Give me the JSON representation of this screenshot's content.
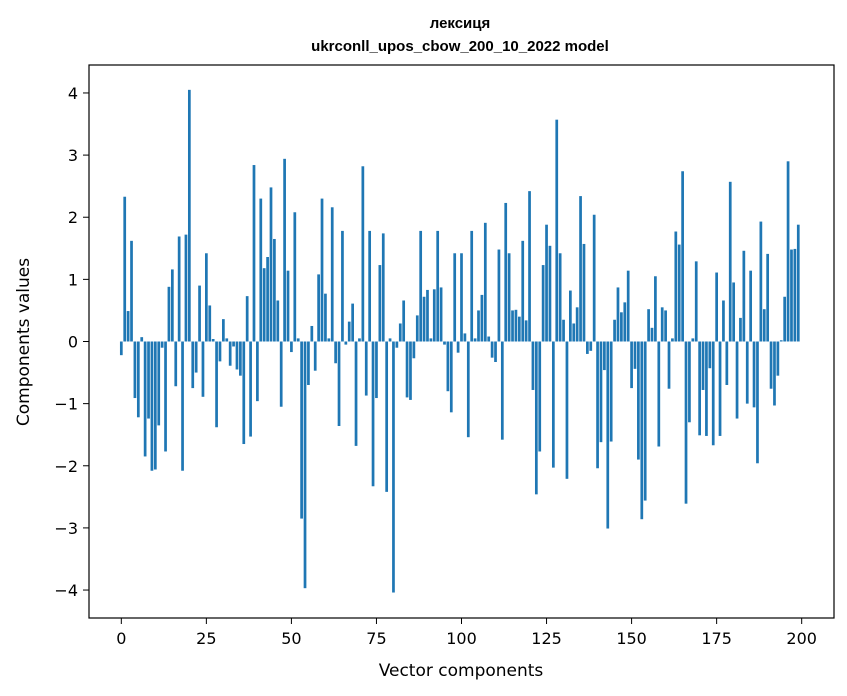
{
  "chart_data": {
    "type": "bar",
    "title": "лексиця",
    "subtitle": "ukrconll_upos_cbow_200_10_2022 model",
    "xlabel": "Vector components",
    "ylabel": "Components values",
    "xlim": [
      -9.5,
      209.5
    ],
    "ylim": [
      -4.45,
      4.45
    ],
    "xticks": [
      0,
      25,
      50,
      75,
      100,
      125,
      150,
      175,
      200
    ],
    "yticks": [
      -4,
      -3,
      -2,
      -1,
      0,
      1,
      2,
      3,
      4
    ],
    "grid": false,
    "color": "#1f77b4",
    "values": [
      -0.22,
      2.33,
      0.49,
      1.62,
      -0.91,
      -1.22,
      0.07,
      -1.85,
      -1.24,
      -2.08,
      -2.06,
      -1.35,
      -0.1,
      -1.77,
      0.88,
      1.16,
      -0.72,
      1.69,
      -2.08,
      1.72,
      4.05,
      -0.75,
      -0.5,
      0.9,
      -0.89,
      1.42,
      0.58,
      0.04,
      -1.38,
      -0.32,
      0.36,
      0.05,
      -0.39,
      -0.08,
      -0.45,
      -0.55,
      -1.65,
      0.73,
      -1.53,
      2.84,
      -0.96,
      2.3,
      1.18,
      1.36,
      2.48,
      1.65,
      0.66,
      -1.05,
      2.94,
      1.14,
      -0.17,
      2.08,
      0.05,
      -2.85,
      -3.97,
      -0.7,
      0.25,
      -0.47,
      1.08,
      2.3,
      0.77,
      0.05,
      2.16,
      -0.35,
      -1.36,
      1.78,
      -0.05,
      0.32,
      0.61,
      -1.68,
      0.05,
      2.82,
      -0.87,
      1.78,
      -2.33,
      -0.91,
      1.23,
      1.74,
      -2.42,
      0.05,
      -4.04,
      -0.1,
      0.29,
      0.66,
      -0.9,
      -0.94,
      -0.27,
      0.42,
      1.78,
      0.72,
      0.83,
      0.05,
      0.84,
      1.78,
      0.87,
      -0.05,
      -0.8,
      -1.14,
      1.42,
      -0.18,
      1.42,
      0.13,
      -1.54,
      1.78,
      0.05,
      0.5,
      0.75,
      1.91,
      0.08,
      -0.26,
      -0.33,
      1.48,
      -1.58,
      2.23,
      1.42,
      0.5,
      0.51,
      0.4,
      1.62,
      0.34,
      2.42,
      -0.78,
      -2.46,
      -1.77,
      1.23,
      1.88,
      1.54,
      -2.03,
      3.57,
      1.42,
      0.35,
      -2.21,
      0.82,
      0.29,
      0.55,
      2.34,
      1.57,
      -0.2,
      -0.15,
      2.04,
      -2.04,
      -1.62,
      -0.46,
      -3.01,
      -1.61,
      0.35,
      0.87,
      0.47,
      0.63,
      1.14,
      -0.75,
      -0.44,
      -1.9,
      -2.86,
      -2.56,
      0.52,
      0.22,
      1.05,
      -1.69,
      0.55,
      0.5,
      -0.76,
      0.05,
      1.77,
      1.56,
      2.74,
      -2.61,
      -1.3,
      0.05,
      1.29,
      -1.51,
      -0.78,
      -1.52,
      -0.43,
      -1.67,
      1.11,
      -1.52,
      0.66,
      -0.7,
      2.57,
      0.95,
      -1.24,
      0.38,
      1.46,
      -1.0,
      1.14,
      -1.06,
      -1.96,
      1.93,
      0.52,
      1.41,
      -0.76,
      -1.03,
      -0.55,
      0.02,
      0.72,
      2.9,
      1.48,
      1.49,
      1.88
    ]
  }
}
